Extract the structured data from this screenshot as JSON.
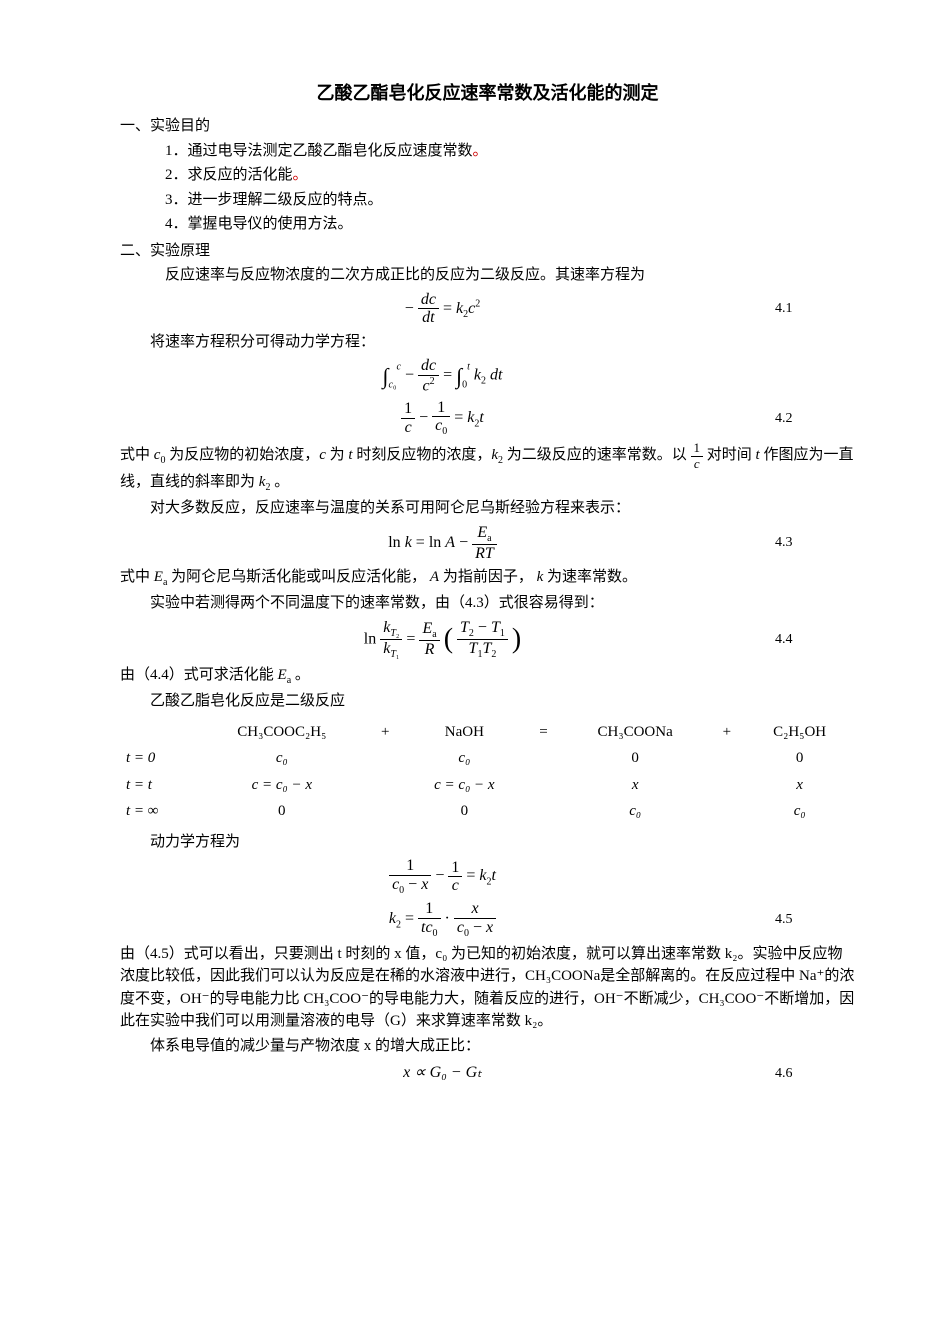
{
  "title": "乙酸乙酯皂化反应速率常数及活化能的测定",
  "sec1": {
    "head": "一、实验目的",
    "item1": "1．通过电导法测定乙酸乙酯皂化反应速度常数",
    "item2": "2．求反应的活化能",
    "item3": "3．进一步理解二级反应的特点。",
    "item4": "4．掌握电导仪的使用方法。"
  },
  "sec2": {
    "head": "二、实验原理",
    "p1": "反应速率与反应物浓度的二次方成正比的反应为二级反应。其速率方程为",
    "eq41_num": "4.1",
    "p2": "将速率方程积分可得动力学方程：",
    "eq42_num": "4.2",
    "p3a": "式中 ",
    "p3b": " 为反应物的初始浓度，",
    "p3c": " 为 ",
    "p3d": " 时刻反应物的浓度，",
    "p3e": " 为二级反应的速率常数。以 ",
    "p3f": " 对时间 ",
    "p3g": " 作图应为一直线，直线的斜率即为 ",
    "p3h": " 。",
    "p4": "对大多数反应，反应速率与温度的关系可用阿仑尼乌斯经验方程来表示：",
    "eq43_num": "4.3",
    "p5a": "式中 ",
    "p5b": " 为阿仑尼乌斯活化能或叫反应活化能， ",
    "p5c": " 为指前因子， ",
    "p5d": " 为速率常数。",
    "p6": "实验中若测得两个不同温度下的速率常数，由（4.3）式很容易得到：",
    "eq44_num": "4.4",
    "p7a": "由（4.4）式可求活化能 ",
    "p7b": " 。",
    "p8": "乙酸乙脂皂化反应是二级反应",
    "reaction": {
      "r1": "CH₃COOC₂H₅",
      "plus1": "+",
      "r2": "NaOH",
      "eq": "=",
      "p1": "CH₃COONa",
      "plus2": "+",
      "p2": "C₂H₅OH"
    },
    "rows": {
      "t0": "t = 0",
      "tt": "t = t",
      "tinf": "t = ∞",
      "c0": "c₀",
      "cx": "c = c₀ − x",
      "zero": "0",
      "x": "x"
    },
    "p9": "动力学方程为",
    "eq45_num": "4.5",
    "p10": "由（4.5）式可以看出，只要测出 t 时刻的 x 值，c₀ 为已知的初始浓度，就可以算出速率常数 k₂。实验中反应物浓度比较低，因此我们可以认为反应是在稀的水溶液中进行，CH₃COONa是全部解离的。在反应过程中 Na⁺的浓度不变，OH⁻的导电能力比 CH₃COO⁻的导电能力大，随着反应的进行，OH⁻不断减少，CH₃COO⁻不断增加，因此在实验中我们可以用测量溶液的电导（G）来求算速率常数 k₂。",
    "p11": "体系电导值的减少量与产物浓度 x 的增大成正比：",
    "eq46": "x ∝ G₀ − Gₜ",
    "eq46_num": "4.6"
  }
}
